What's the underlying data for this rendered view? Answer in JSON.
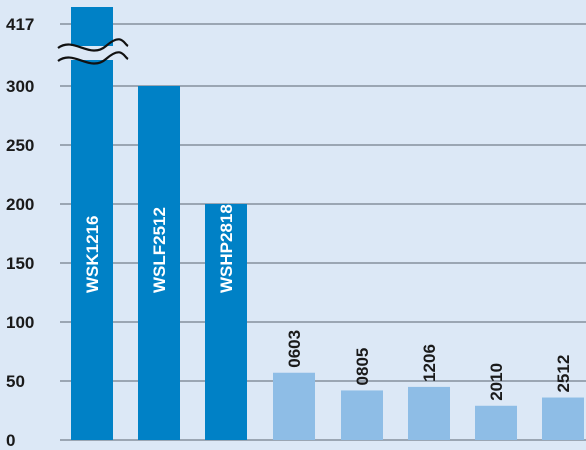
{
  "chart_data": {
    "type": "bar",
    "title": "",
    "xlabel": "",
    "ylabel": "",
    "categories": [
      "WSK1216",
      "WSLF2512",
      "WSHP2818",
      "0603",
      "0805",
      "1206",
      "2010",
      "2512"
    ],
    "values": [
      417,
      300,
      200,
      57,
      42,
      45,
      29,
      36
    ],
    "ylim": [
      0,
      417
    ],
    "y_ticks": [
      "0",
      "50",
      "100",
      "150",
      "200",
      "250",
      "300",
      "417"
    ],
    "axis_break": "between 300 and 417",
    "grid": true,
    "colors": {
      "background": "#dce8f6",
      "dark_bar": "#0081c6",
      "light_bar": "#8ebde6",
      "grid": "#5a6470",
      "dark_bar_label": "#ffffff",
      "light_bar_label": "#1a1a1a"
    },
    "bar_styles": [
      "dark",
      "dark",
      "dark",
      "light",
      "light",
      "light",
      "light",
      "light"
    ]
  }
}
